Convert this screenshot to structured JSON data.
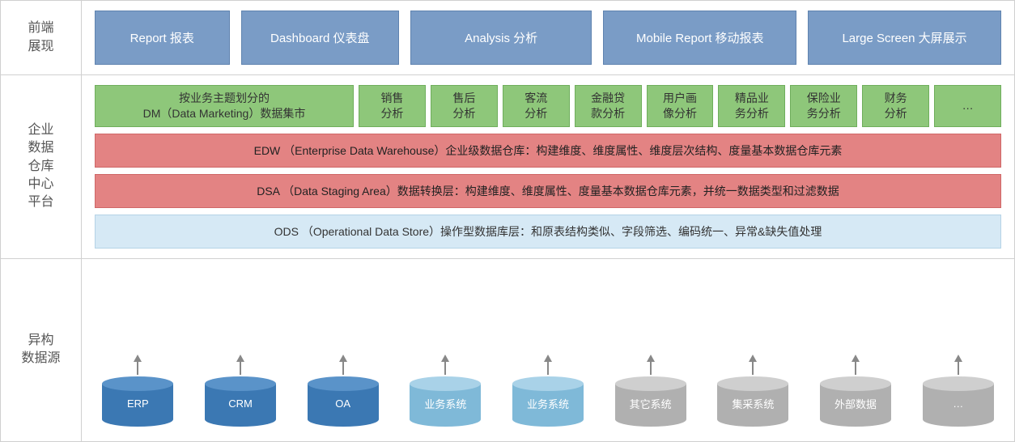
{
  "diagram": {
    "type": "infographic",
    "background_color": "#ffffff",
    "border_color": "#d0d0d0",
    "label_color": "#555555",
    "label_fontsize": 16,
    "box_fontsize": 14,
    "rows": {
      "front": {
        "label": "前端\n展现",
        "box_bg": "#7a9cc6",
        "box_border": "#5f83af",
        "box_text_color": "#ffffff",
        "items": [
          {
            "label": "Report 报表",
            "flex": 1
          },
          {
            "label": "Dashboard 仪表盘",
            "flex": 1.2
          },
          {
            "label": "Analysis 分析",
            "flex": 1.4
          },
          {
            "label": "Mobile Report 移动报表",
            "flex": 1.5
          },
          {
            "label": "Large Screen 大屏展示",
            "flex": 1.5
          }
        ]
      },
      "platform": {
        "label": "企业\n数据\n仓库\n中心\n平台",
        "green": {
          "bg": "#8ec77a",
          "border": "#6fae5c",
          "text_color": "#333333",
          "main": "按业务主题划分的\nDM（Data Marketing）数据集市",
          "items": [
            "销售\n分析",
            "售后\n分析",
            "客流\n分析",
            "金融贷\n款分析",
            "用户画\n像分析",
            "精品业\n务分析",
            "保险业\n务分析",
            "财务\n分析",
            "…"
          ]
        },
        "red": {
          "bg": "#e38383",
          "border": "#cf6767",
          "text_color": "#222222",
          "edw": "EDW （Enterprise Data Warehouse）企业级数据仓库：构建维度、维度属性、维度层次结构、度量基本数据仓库元素",
          "dsa": "DSA （Data Staging Area）数据转换层：构建维度、维度属性、度量基本数据仓库元素，并统一数据类型和过滤数据"
        },
        "light": {
          "bg": "#d6e9f5",
          "border": "#b5d3e6",
          "text_color": "#333333",
          "ods": "ODS （Operational Data Store）操作型数据库层：和原表结构类似、字段筛选、编码统一、异常&缺失值处理"
        }
      },
      "sources": {
        "label": "异构\n数据源",
        "arrow_color": "#888888",
        "cylinders": [
          {
            "label": "ERP",
            "top": "#5a93c9",
            "body": "#3b78b3",
            "label_color": "#ffffff"
          },
          {
            "label": "CRM",
            "top": "#5a93c9",
            "body": "#3b78b3",
            "label_color": "#ffffff"
          },
          {
            "label": "OA",
            "top": "#5a93c9",
            "body": "#3b78b3",
            "label_color": "#ffffff"
          },
          {
            "label": "业务系统",
            "top": "#a9d2e8",
            "body": "#7fb9d8",
            "label_color": "#ffffff"
          },
          {
            "label": "业务系统",
            "top": "#a9d2e8",
            "body": "#7fb9d8",
            "label_color": "#ffffff"
          },
          {
            "label": "其它系统",
            "top": "#cfcfcf",
            "body": "#b0b0b0",
            "label_color": "#ffffff"
          },
          {
            "label": "集采系统",
            "top": "#cfcfcf",
            "body": "#b0b0b0",
            "label_color": "#ffffff"
          },
          {
            "label": "外部数据",
            "top": "#cfcfcf",
            "body": "#b0b0b0",
            "label_color": "#ffffff"
          },
          {
            "label": "…",
            "top": "#cfcfcf",
            "body": "#b0b0b0",
            "label_color": "#ffffff"
          }
        ]
      }
    }
  }
}
